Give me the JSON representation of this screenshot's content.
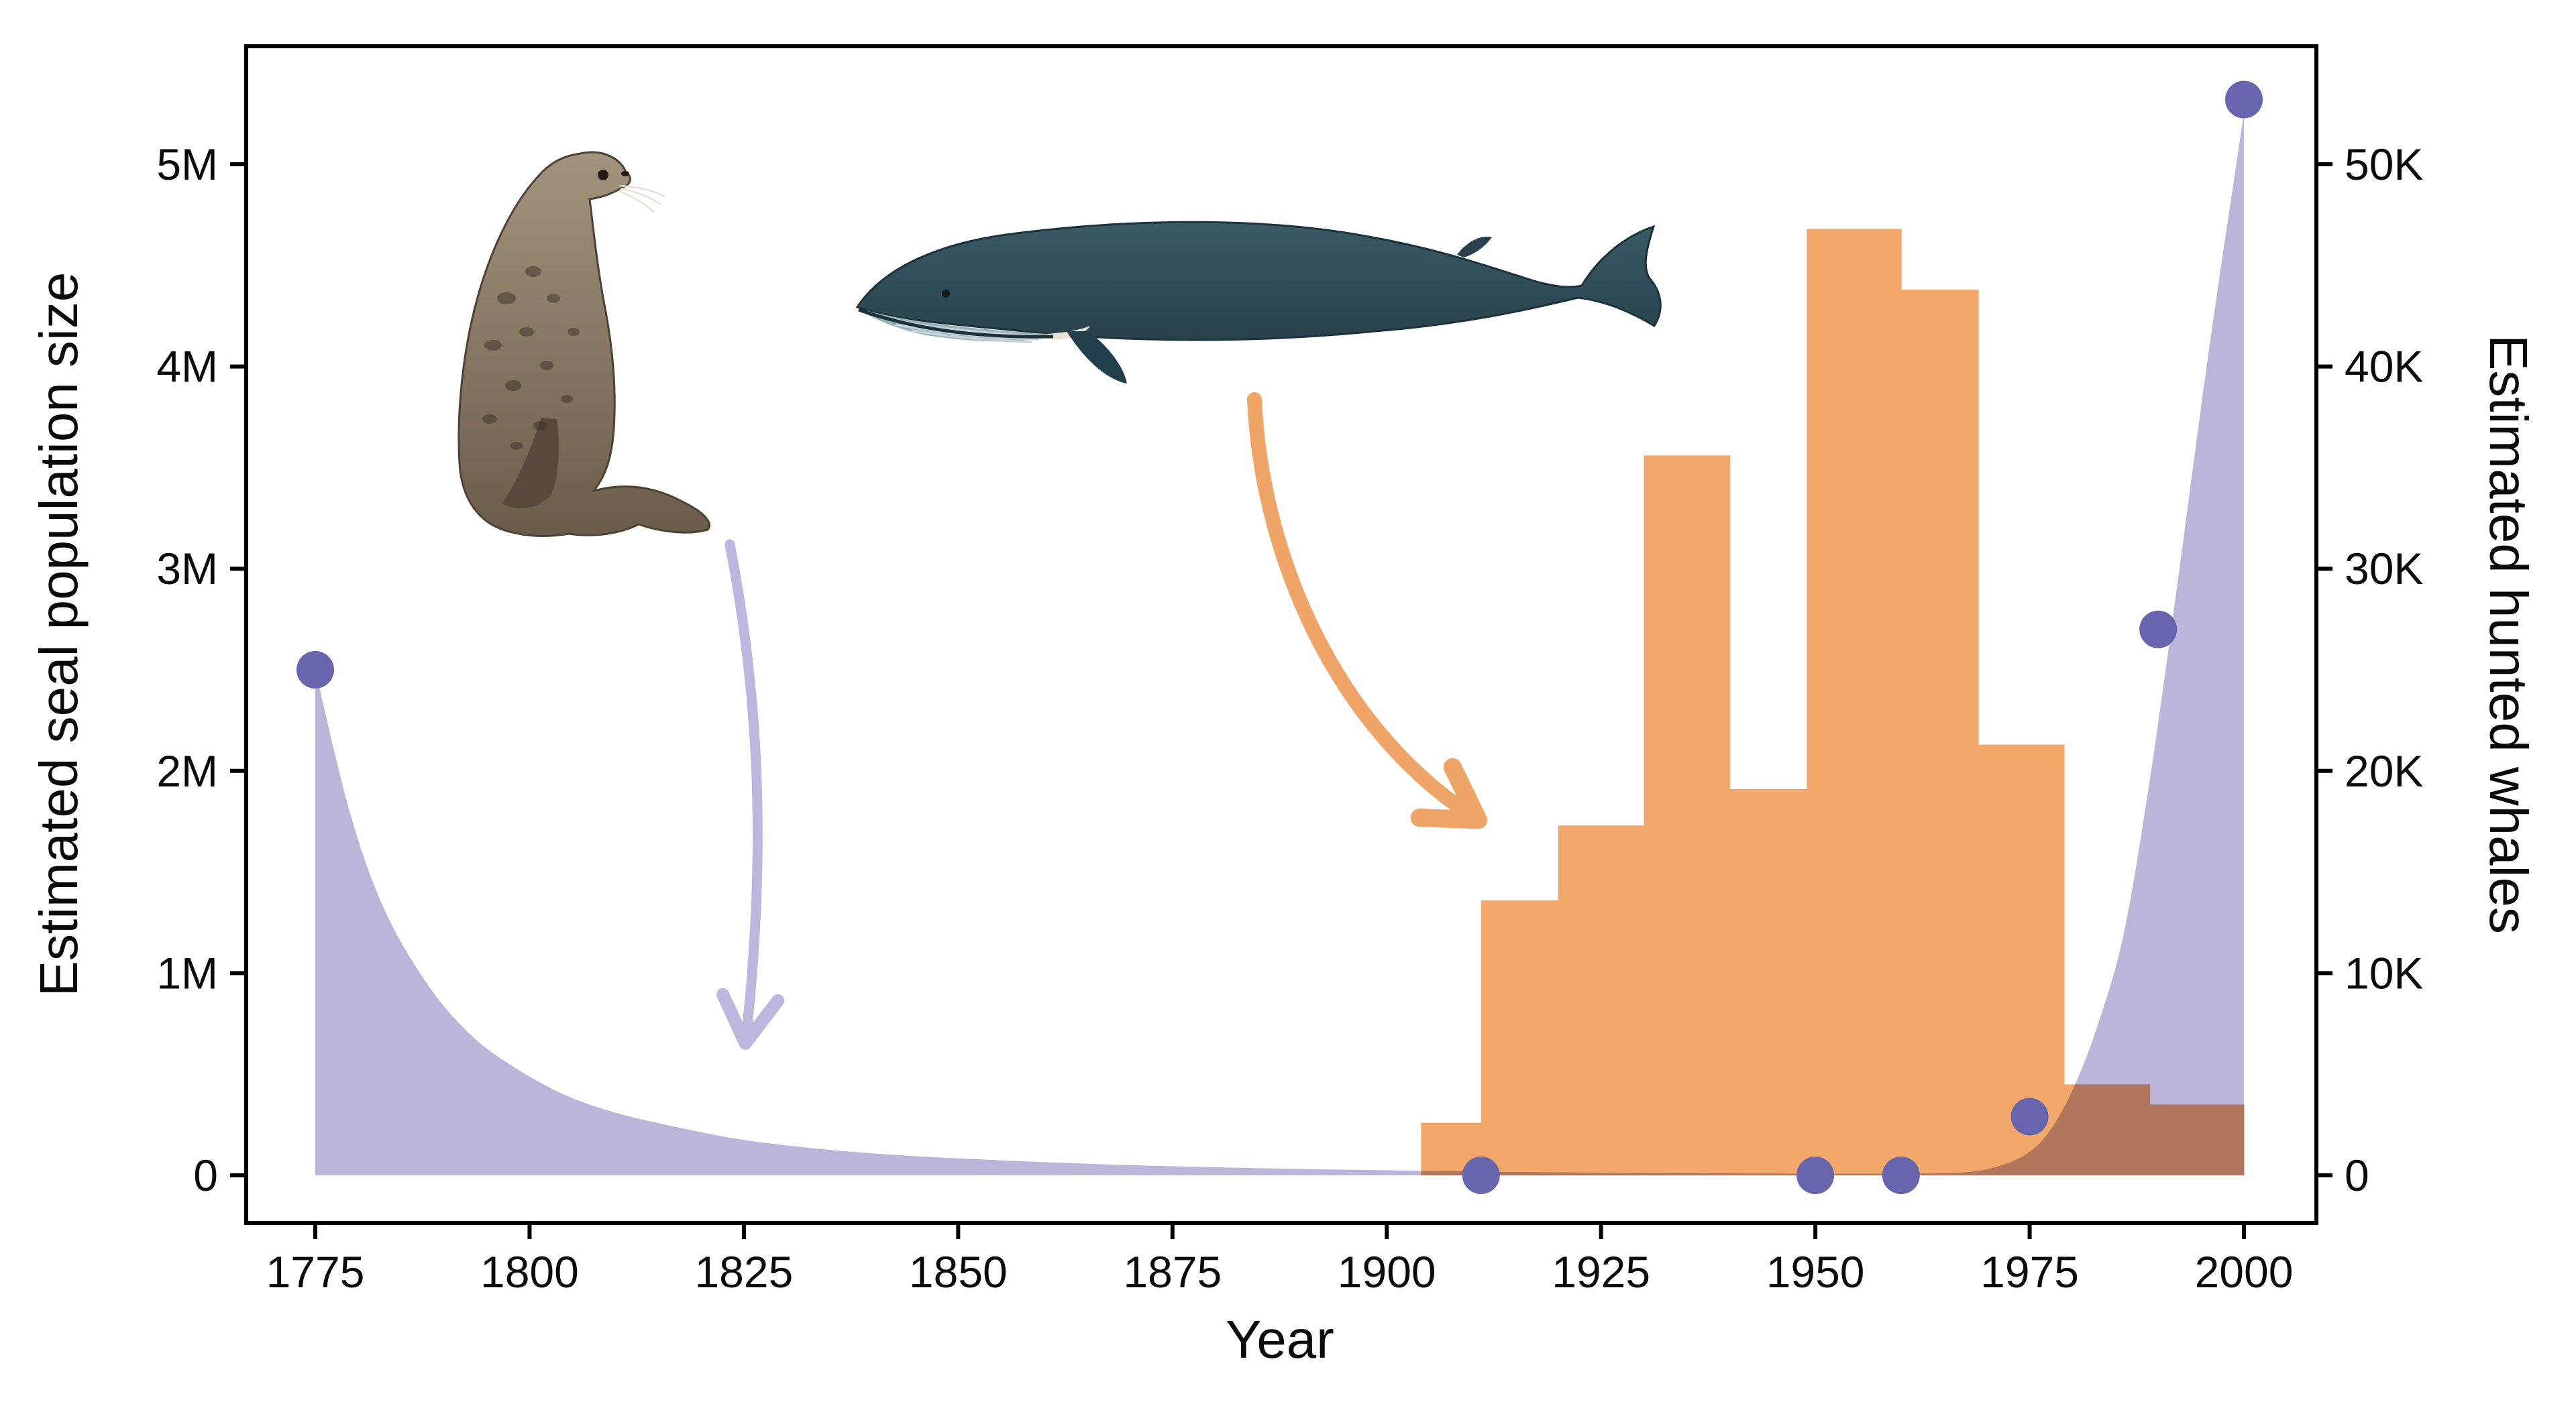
{
  "figure": {
    "background": "#ffffff"
  },
  "chart_data": {
    "type": "area",
    "title": "",
    "xlabel": "Year",
    "ylabel_left": "Estimated seal population size",
    "ylabel_right": "Estimated hunted whales",
    "axes": {
      "x": {
        "label": "Year",
        "ticks": [
          1775,
          1800,
          1825,
          1850,
          1875,
          1900,
          1925,
          1950,
          1975,
          2000
        ],
        "range": [
          1767,
          2008
        ]
      },
      "left": {
        "label": "Estimated seal population size",
        "tick_values": [
          0,
          1,
          2,
          3,
          4,
          5
        ],
        "tick_labels": [
          "0",
          "1M",
          "2M",
          "3M",
          "4M",
          "5M"
        ],
        "units": "millions of seals",
        "range": [
          0,
          5.8
        ]
      },
      "right": {
        "label": "Estimated hunted whales",
        "tick_values": [
          0,
          10,
          20,
          30,
          40,
          50
        ],
        "tick_labels": [
          "0",
          "10K",
          "20K",
          "30K",
          "40K",
          "50K"
        ],
        "units": "thousands of whales",
        "range": [
          0,
          58
        ]
      }
    },
    "series": [
      {
        "name": "seal_population_curve",
        "type": "area",
        "axis": "left",
        "color": "#b7b1d8",
        "units": "millions",
        "points": [
          [
            1775,
            2.5
          ],
          [
            1779,
            1.8
          ],
          [
            1783,
            1.32
          ],
          [
            1788,
            0.95
          ],
          [
            1793,
            0.7
          ],
          [
            1798,
            0.54
          ],
          [
            1804,
            0.4
          ],
          [
            1810,
            0.31
          ],
          [
            1817,
            0.24
          ],
          [
            1825,
            0.175
          ],
          [
            1834,
            0.13
          ],
          [
            1843,
            0.1
          ],
          [
            1852,
            0.08
          ],
          [
            1862,
            0.062
          ],
          [
            1872,
            0.048
          ],
          [
            1882,
            0.038
          ],
          [
            1892,
            0.03
          ],
          [
            1902,
            0.024
          ],
          [
            1912,
            0.018
          ],
          [
            1922,
            0.014
          ],
          [
            1932,
            0.011
          ],
          [
            1942,
            0.009
          ],
          [
            1952,
            0.008
          ],
          [
            1960,
            0.008
          ],
          [
            1966,
            0.012
          ],
          [
            1970,
            0.03
          ],
          [
            1974,
            0.09
          ],
          [
            1977,
            0.2
          ],
          [
            1980,
            0.42
          ],
          [
            1983,
            0.75
          ],
          [
            1986,
            1.2
          ],
          [
            1989,
            1.95
          ],
          [
            1992,
            2.85
          ],
          [
            1995,
            3.8
          ],
          [
            1997,
            4.4
          ],
          [
            2000,
            5.25
          ]
        ]
      },
      {
        "name": "seal_population_observations",
        "type": "scatter",
        "axis": "left",
        "color": "#6765ad",
        "units": "millions",
        "points": [
          [
            1775,
            2.5
          ],
          [
            1911,
            0
          ],
          [
            1950,
            0
          ],
          [
            1960,
            0
          ],
          [
            1975,
            0.29
          ],
          [
            1990,
            2.7
          ],
          [
            2000,
            5.32
          ]
        ]
      },
      {
        "name": "hunted_whales_histogram",
        "type": "bar",
        "axis": "right",
        "color": "#f2a76b",
        "units": "thousands",
        "bins": [
          {
            "from": 1904,
            "to": 1911,
            "value": 2.6
          },
          {
            "from": 1911,
            "to": 1920,
            "value": 13.6
          },
          {
            "from": 1920,
            "to": 1930,
            "value": 17.3
          },
          {
            "from": 1930,
            "to": 1940,
            "value": 35.6
          },
          {
            "from": 1940,
            "to": 1949,
            "value": 19.1
          },
          {
            "from": 1949,
            "to": 1960,
            "value": 46.8
          },
          {
            "from": 1960,
            "to": 1969,
            "value": 43.8
          },
          {
            "from": 1969,
            "to": 1979,
            "value": 21.3
          },
          {
            "from": 1979,
            "to": 1989,
            "value": 4.5
          },
          {
            "from": 1989,
            "to": 2000,
            "value": 3.5
          }
        ]
      }
    ],
    "legend": "none",
    "grid": false,
    "annotations": [
      {
        "name": "seal-illustration",
        "kind": "drawing of a fur seal"
      },
      {
        "name": "whale-illustration",
        "kind": "drawing of a blue whale"
      },
      {
        "name": "seal-decline-arrow",
        "color": "#bdb7e0"
      },
      {
        "name": "whale-hunt-arrow",
        "color": "#f0a568"
      }
    ],
    "colors": {
      "seal_area": "#b7b1d8",
      "seal_points": "#6765ad",
      "whale_bars": "#f2a76b",
      "overlap": "#c07a52",
      "axis": "#0a0a0a"
    }
  }
}
